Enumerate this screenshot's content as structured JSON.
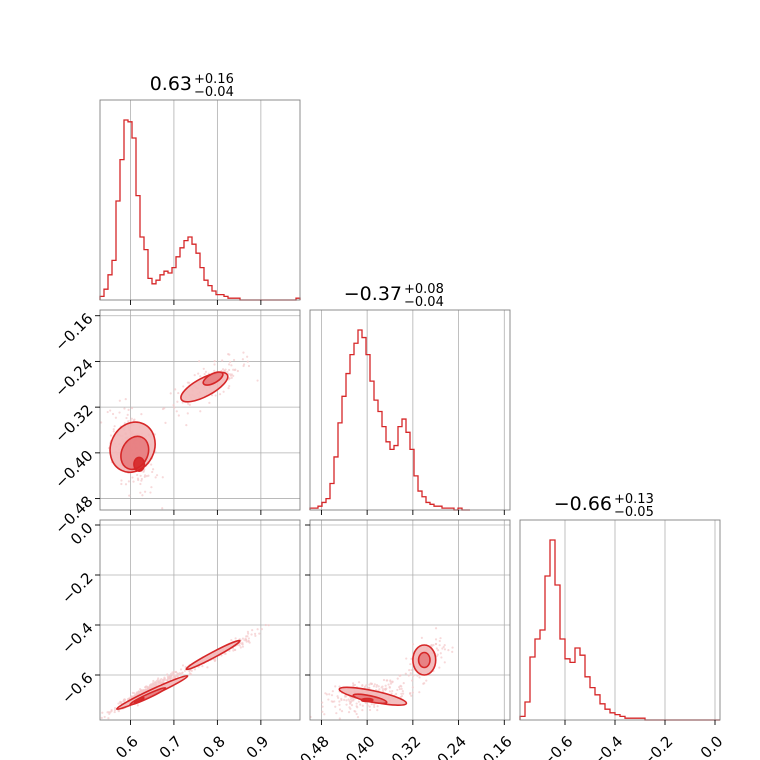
{
  "colors": {
    "accent": "#d62728",
    "fill_light": "#f2b7b8",
    "fill_mid": "#e77b7d",
    "scatter": "#f3c9ca"
  },
  "chart_data": {
    "type": "corner",
    "parameters": [
      {
        "median": "0.63",
        "plus": "+0.16",
        "minus": "−0.04"
      },
      {
        "median": "−0.37",
        "plus": "+0.08",
        "minus": "−0.04"
      },
      {
        "median": "−0.66",
        "plus": "+0.13",
        "minus": "−0.05"
      }
    ],
    "ranges": [
      [
        0.53,
        0.99
      ],
      [
        -0.5,
        -0.15
      ],
      [
        -0.78,
        0.02
      ]
    ],
    "ticks": [
      {
        "values": [
          0.6,
          0.7,
          0.8,
          0.9
        ],
        "labels": [
          "0.6",
          "0.7",
          "0.8",
          "0.9"
        ]
      },
      {
        "values": [
          -0.48,
          -0.4,
          -0.32,
          -0.24,
          -0.16
        ],
        "labels": [
          "−0.48",
          "−0.40",
          "−0.32",
          "−0.24",
          "−0.16"
        ]
      },
      {
        "values": [
          -0.6,
          -0.4,
          -0.2,
          0.0
        ],
        "labels": [
          "−0.6",
          "−0.4",
          "−0.2",
          "0.0"
        ]
      }
    ],
    "histograms": [
      {
        "edges_start": 0.53,
        "bin_width": 0.0092,
        "counts": [
          2,
          6,
          14,
          22,
          55,
          78,
          100,
          99,
          90,
          58,
          35,
          28,
          12,
          9,
          11,
          14,
          16,
          15,
          18,
          24,
          29,
          33,
          35,
          31,
          26,
          18,
          11,
          8,
          5,
          3,
          3,
          2,
          1,
          1,
          1,
          0,
          0,
          0,
          0,
          0,
          0,
          0,
          0,
          0,
          0,
          0,
          0,
          0,
          0,
          1
        ]
      },
      {
        "edges_start": -0.5,
        "bin_width": 0.007,
        "counts": [
          1,
          1,
          2,
          4,
          6,
          14,
          28,
          46,
          60,
          72,
          82,
          88,
          95,
          91,
          82,
          68,
          58,
          52,
          44,
          36,
          32,
          34,
          44,
          48,
          41,
          32,
          18,
          10,
          7,
          4,
          3,
          2,
          2,
          1,
          1,
          1,
          0,
          1,
          0,
          0
        ]
      },
      {
        "edges_start": -0.78,
        "bin_width": 0.02,
        "counts": [
          2,
          10,
          35,
          45,
          50,
          80,
          100,
          75,
          45,
          34,
          32,
          40,
          36,
          24,
          18,
          14,
          9,
          6,
          4,
          3,
          2,
          1,
          1,
          1,
          1,
          0,
          0,
          0,
          0,
          0,
          0,
          0,
          0,
          0,
          0,
          0,
          0,
          0,
          0,
          0
        ]
      }
    ],
    "joint_pairs": [
      {
        "x_param": 0,
        "y_param": 1,
        "trend": "two clusters, positive correlation"
      },
      {
        "x_param": 0,
        "y_param": 2,
        "trend": "tight positive correlation"
      },
      {
        "x_param": 1,
        "y_param": 2,
        "trend": "two clusters, positive correlation"
      }
    ],
    "grid": true
  }
}
